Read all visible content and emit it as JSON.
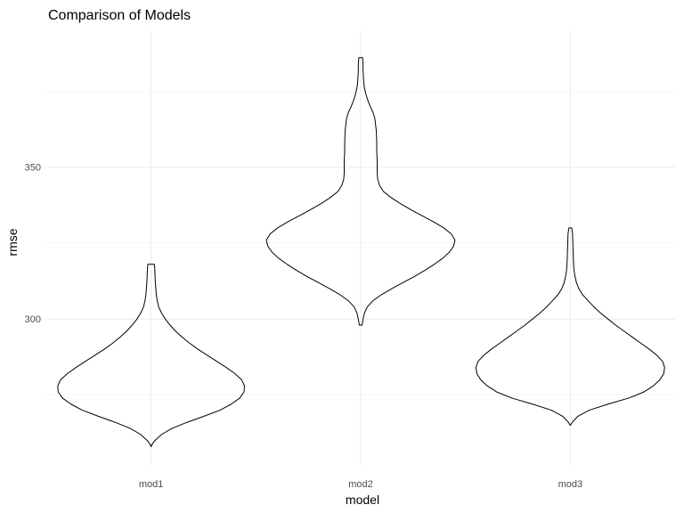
{
  "chart_data": {
    "type": "violin",
    "title": "Comparison of Models",
    "xlabel": "model",
    "ylabel": "rmse",
    "categories": [
      "mod1",
      "mod2",
      "mod3"
    ],
    "ylim": [
      252,
      395
    ],
    "y_ticks": [
      300,
      350
    ],
    "y_tick_labels": [
      "300",
      "350"
    ],
    "grid": true,
    "violins": [
      {
        "category": "mod1",
        "profile": [
          [
            258,
            0
          ],
          [
            259,
            1.5
          ],
          [
            260,
            4
          ],
          [
            262,
            11
          ],
          [
            264,
            22
          ],
          [
            266,
            38
          ],
          [
            268,
            56
          ],
          [
            270,
            73
          ],
          [
            272,
            85
          ],
          [
            274,
            94
          ],
          [
            276,
            98.5
          ],
          [
            278,
            99
          ],
          [
            280,
            96
          ],
          [
            282,
            89
          ],
          [
            284,
            80
          ],
          [
            286,
            70
          ],
          [
            288,
            60
          ],
          [
            290,
            50
          ],
          [
            292,
            41
          ],
          [
            294,
            33
          ],
          [
            296,
            26
          ],
          [
            298,
            20
          ],
          [
            300,
            15
          ],
          [
            302,
            11
          ],
          [
            304,
            8
          ],
          [
            306,
            6.5
          ],
          [
            308,
            5.5
          ],
          [
            310,
            5
          ],
          [
            312,
            4.5
          ],
          [
            314,
            4.2
          ],
          [
            316,
            4
          ],
          [
            318,
            3.5
          ]
        ]
      },
      {
        "category": "mod2",
        "profile": [
          [
            298,
            1.5
          ],
          [
            300,
            2.5
          ],
          [
            302,
            4
          ],
          [
            304,
            7
          ],
          [
            306,
            13
          ],
          [
            308,
            22
          ],
          [
            310,
            33
          ],
          [
            312,
            45
          ],
          [
            314,
            57
          ],
          [
            316,
            68
          ],
          [
            318,
            78
          ],
          [
            320,
            87
          ],
          [
            322,
            94
          ],
          [
            324,
            98.5
          ],
          [
            326,
            100
          ],
          [
            328,
            96
          ],
          [
            330,
            88
          ],
          [
            332,
            77
          ],
          [
            334,
            65
          ],
          [
            336,
            53
          ],
          [
            338,
            42
          ],
          [
            340,
            32
          ],
          [
            342,
            24
          ],
          [
            344,
            20
          ],
          [
            346,
            18
          ],
          [
            348,
            17.5
          ],
          [
            350,
            17.5
          ],
          [
            352,
            17.5
          ],
          [
            355,
            17
          ],
          [
            358,
            17
          ],
          [
            362,
            16.5
          ],
          [
            366,
            15
          ],
          [
            368,
            13
          ],
          [
            370,
            10
          ],
          [
            372,
            7.5
          ],
          [
            374,
            5.5
          ],
          [
            376,
            4
          ],
          [
            378,
            3.2
          ],
          [
            380,
            2.8
          ],
          [
            382,
            2.5
          ],
          [
            384,
            2.5
          ],
          [
            386,
            2
          ]
        ]
      },
      {
        "category": "mod3",
        "profile": [
          [
            265,
            0
          ],
          [
            266,
            2
          ],
          [
            268,
            8
          ],
          [
            270,
            20
          ],
          [
            272,
            40
          ],
          [
            274,
            62
          ],
          [
            276,
            78
          ],
          [
            278,
            88
          ],
          [
            280,
            95
          ],
          [
            282,
            99
          ],
          [
            284,
            100
          ],
          [
            286,
            98
          ],
          [
            288,
            92
          ],
          [
            290,
            84
          ],
          [
            292,
            75
          ],
          [
            294,
            66
          ],
          [
            296,
            57
          ],
          [
            298,
            48
          ],
          [
            300,
            40
          ],
          [
            302,
            32
          ],
          [
            304,
            25
          ],
          [
            306,
            19
          ],
          [
            308,
            13
          ],
          [
            310,
            9
          ],
          [
            312,
            6.5
          ],
          [
            314,
            5
          ],
          [
            316,
            4
          ],
          [
            318,
            3.5
          ],
          [
            320,
            3.2
          ],
          [
            322,
            3
          ],
          [
            324,
            2.8
          ],
          [
            326,
            2.6
          ],
          [
            328,
            2.4
          ],
          [
            330,
            1.5
          ]
        ]
      }
    ]
  }
}
